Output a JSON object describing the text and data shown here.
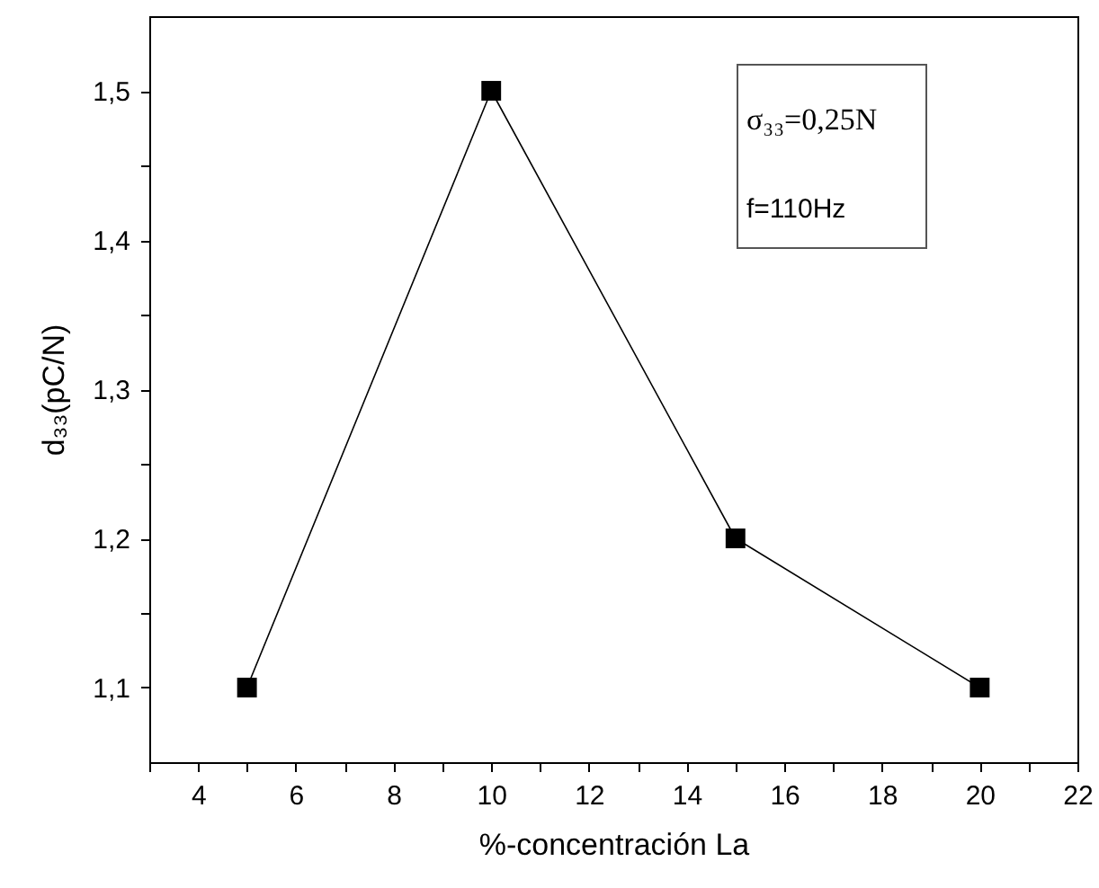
{
  "chart_data": {
    "type": "line",
    "xlabel": "%-concentración La",
    "ylabel": "d₃₃(pC/N)",
    "annotations": [
      "σ₃₃=0,25N",
      "f=110Hz"
    ],
    "x": [
      5,
      10,
      15,
      20
    ],
    "series": [
      {
        "color": "#000000",
        "values": [
          1.1,
          1.5,
          1.2,
          1.1
        ]
      }
    ],
    "marker": "square",
    "line_style": "solid",
    "xlim": [
      3,
      22
    ],
    "xticks": [
      {
        "value": 3,
        "label": null
      },
      4,
      {
        "value": 5,
        "label": null
      },
      6,
      {
        "value": 7,
        "label": null
      },
      8,
      {
        "value": 9,
        "label": null
      },
      10,
      {
        "value": 11,
        "label": null
      },
      12,
      {
        "value": 13,
        "label": null
      },
      14,
      {
        "value": 15,
        "label": null
      },
      16,
      {
        "value": 17,
        "label": null
      },
      18,
      {
        "value": 19,
        "label": null
      },
      20,
      {
        "value": 21,
        "label": null
      },
      22
    ],
    "ylim": [
      1.05,
      1.55
    ],
    "yticks": [
      {
        "value": 1.1,
        "label": "1,1"
      },
      {
        "value": 1.15,
        "label": null
      },
      {
        "value": 1.2,
        "label": "1,2"
      },
      {
        "value": 1.25,
        "label": null
      },
      {
        "value": 1.3,
        "label": "1,3"
      },
      {
        "value": 1.35,
        "label": null
      },
      {
        "value": 1.4,
        "label": "1,4"
      },
      {
        "value": 1.45,
        "label": null
      },
      {
        "value": 1.5,
        "label": "1,5"
      }
    ]
  }
}
